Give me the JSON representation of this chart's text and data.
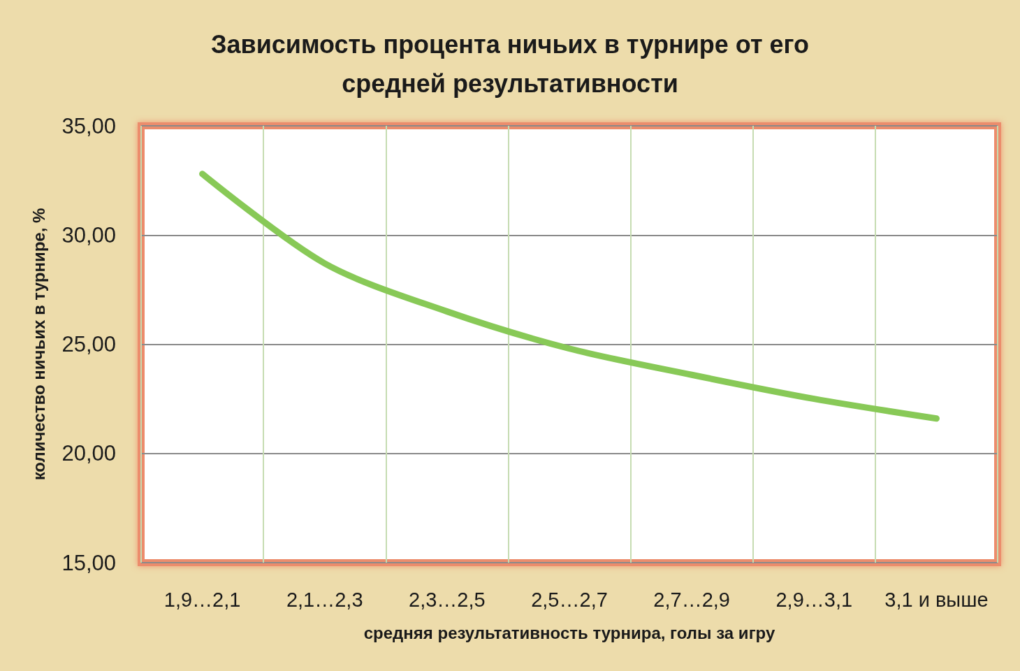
{
  "chart_data": {
    "type": "line",
    "title": "Зависимость процента ничьих в турнире от его средней результативности",
    "xlabel": "средняя результативность турнира, голы за игру",
    "ylabel": "количество ничьих в турнире, %",
    "categories": [
      "1,9…2,1",
      "2,1…2,3",
      "2,3…2,5",
      "2,5…2,7",
      "2,7…2,9",
      "2,9…3,1",
      "3,1 и выше"
    ],
    "values": [
      32.8,
      28.7,
      26.5,
      24.8,
      23.6,
      22.5,
      21.6
    ],
    "color": "#88c957",
    "ylim": [
      15,
      35
    ],
    "yticks": [
      {
        "value": 15,
        "label": "15,00"
      },
      {
        "value": 20,
        "label": "20,00"
      },
      {
        "value": 25,
        "label": "25,00"
      },
      {
        "value": 30,
        "label": "30,00"
      },
      {
        "value": 35,
        "label": "35,00"
      }
    ],
    "grid": true,
    "marker": "none",
    "line_style": "solid"
  }
}
